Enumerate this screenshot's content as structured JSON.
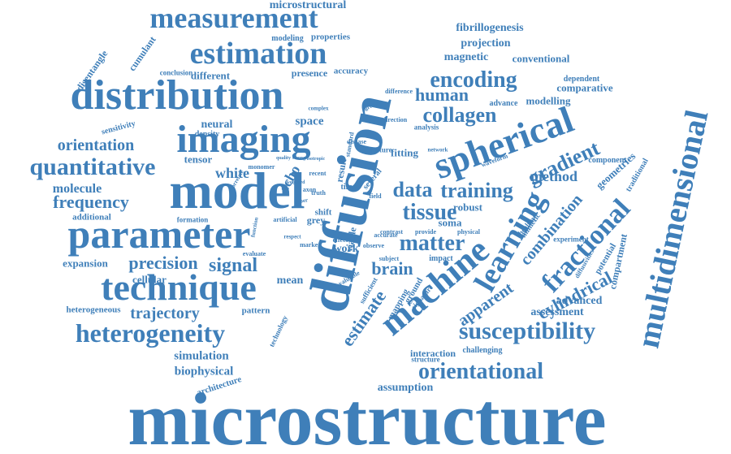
{
  "colors": {
    "word": "#3f7fb9",
    "background": "#ffffff"
  },
  "words": [
    "microstructure",
    "diffusion",
    "parameter",
    "model",
    "distribution",
    "technique",
    "imaging",
    "spherical",
    "measurement",
    "estimation",
    "quantitative",
    "heterogeneity",
    "multidimensional",
    "machine",
    "learning",
    "orientational",
    "susceptibility",
    "fractional",
    "tissue",
    "matter",
    "collagen",
    "encoding",
    "gradient",
    "training",
    "data",
    "frequency",
    "orientation",
    "signal",
    "precision",
    "brain",
    "human",
    "estimate",
    "trajectory",
    "cylindrical",
    "apparent",
    "combination",
    "method",
    "molecule",
    "white",
    "echo",
    "microstructural",
    "fibrillogenesis",
    "projection",
    "magnetic",
    "conventional",
    "comparative",
    "modelling",
    "advance",
    "dependent",
    "neural",
    "space",
    "tensor",
    "cellular",
    "simulation",
    "biophysical",
    "assessment",
    "advanced",
    "assumption",
    "architecture",
    "mean",
    "expansion",
    "additional",
    "heterogeneous",
    "pattern",
    "disentangle",
    "cumulant",
    "different",
    "presence",
    "accuracy",
    "modeling",
    "properties",
    "conclusion",
    "density",
    "sensitivity",
    "geometries",
    "traditional",
    "component",
    "compartment",
    "potential",
    "diffusivities",
    "experiment",
    "healthy",
    "mimetic",
    "interaction",
    "structure",
    "challenging",
    "robust",
    "soma",
    "grey",
    "shift",
    "viable",
    "work",
    "effect",
    "observe",
    "accurate",
    "subject",
    "impact",
    "physical",
    "provide",
    "contrast",
    "result",
    "several",
    "time",
    "fitting",
    "analysis",
    "direction",
    "feature",
    "disease",
    "standard",
    "difference",
    "complex",
    "greater",
    "technology",
    "mapping",
    "ground",
    "signature",
    "sufficient",
    "valuable",
    "formation",
    "artificial",
    "respect",
    "evaluate",
    "marker",
    "monomer",
    "recent",
    "axon",
    "field",
    "truth",
    "waveform",
    "network",
    "correlate",
    "function",
    "quality",
    "strong",
    "isotropic",
    "weighted",
    "fiber"
  ]
}
